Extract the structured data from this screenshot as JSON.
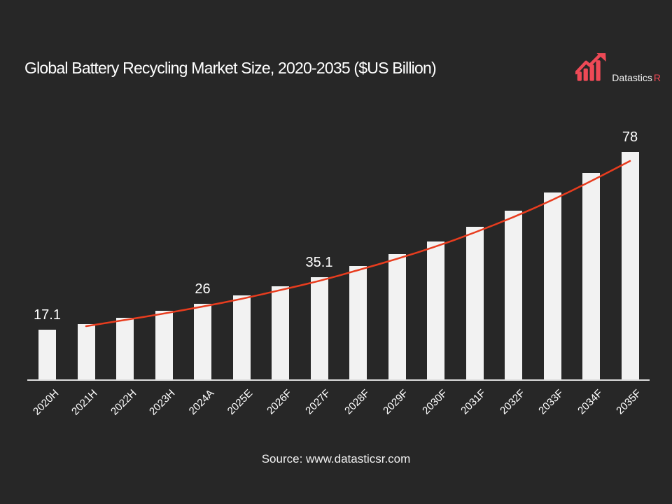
{
  "page": {
    "background": "#272727",
    "text_color": "#ffffff"
  },
  "header": {
    "logo": {
      "name": "Datastics",
      "suffix": "R",
      "accent_color": "#ee4956",
      "icon": "rising-bars-arrow-icon"
    }
  },
  "chart_data": {
    "type": "bar",
    "title": "Global Battery Recycling Market Size, 2020-2035 ($US Billion)",
    "categories": [
      "2020H",
      "2021H",
      "2022H",
      "2023H",
      "2024A",
      "2025E",
      "2026F",
      "2027F",
      "2028F",
      "2029F",
      "2030F",
      "2031F",
      "2032F",
      "2033F",
      "2034F",
      "2035F"
    ],
    "values": [
      17.1,
      19,
      21.2,
      23.5,
      26,
      28.7,
      31.9,
      35.1,
      39,
      43,
      47.4,
      52.4,
      57.9,
      64,
      70.8,
      78
    ],
    "data_labels": [
      "17.1",
      null,
      null,
      null,
      "26",
      null,
      null,
      "35.1",
      null,
      null,
      null,
      null,
      null,
      null,
      null,
      "78"
    ],
    "xlabel": "",
    "ylabel": "",
    "ylim": [
      0,
      87
    ],
    "grid": false,
    "legend": false,
    "bar_color": "#f2f2f2",
    "trendline_color": "#e83c1e",
    "axis_color": "#dcdcdc",
    "label_color": "#ffffff"
  },
  "footer": {
    "source": "Source: www.datasticsr.com"
  }
}
